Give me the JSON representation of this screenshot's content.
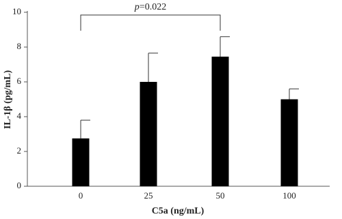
{
  "chart_data": {
    "type": "bar",
    "categories": [
      "0",
      "25",
      "50",
      "100"
    ],
    "values": [
      2.75,
      6.0,
      7.45,
      5.0
    ],
    "errors": [
      1.05,
      1.65,
      1.15,
      0.6
    ],
    "color": "#000000",
    "ylim": [
      0,
      10
    ],
    "yticks": [
      0,
      2,
      4,
      6,
      8,
      10
    ],
    "xlabel": "C5a (ng/mL)",
    "ylabel": "IL-1β (pg/mL)",
    "annotation": {
      "italic": "p",
      "text": "=0.022"
    }
  }
}
